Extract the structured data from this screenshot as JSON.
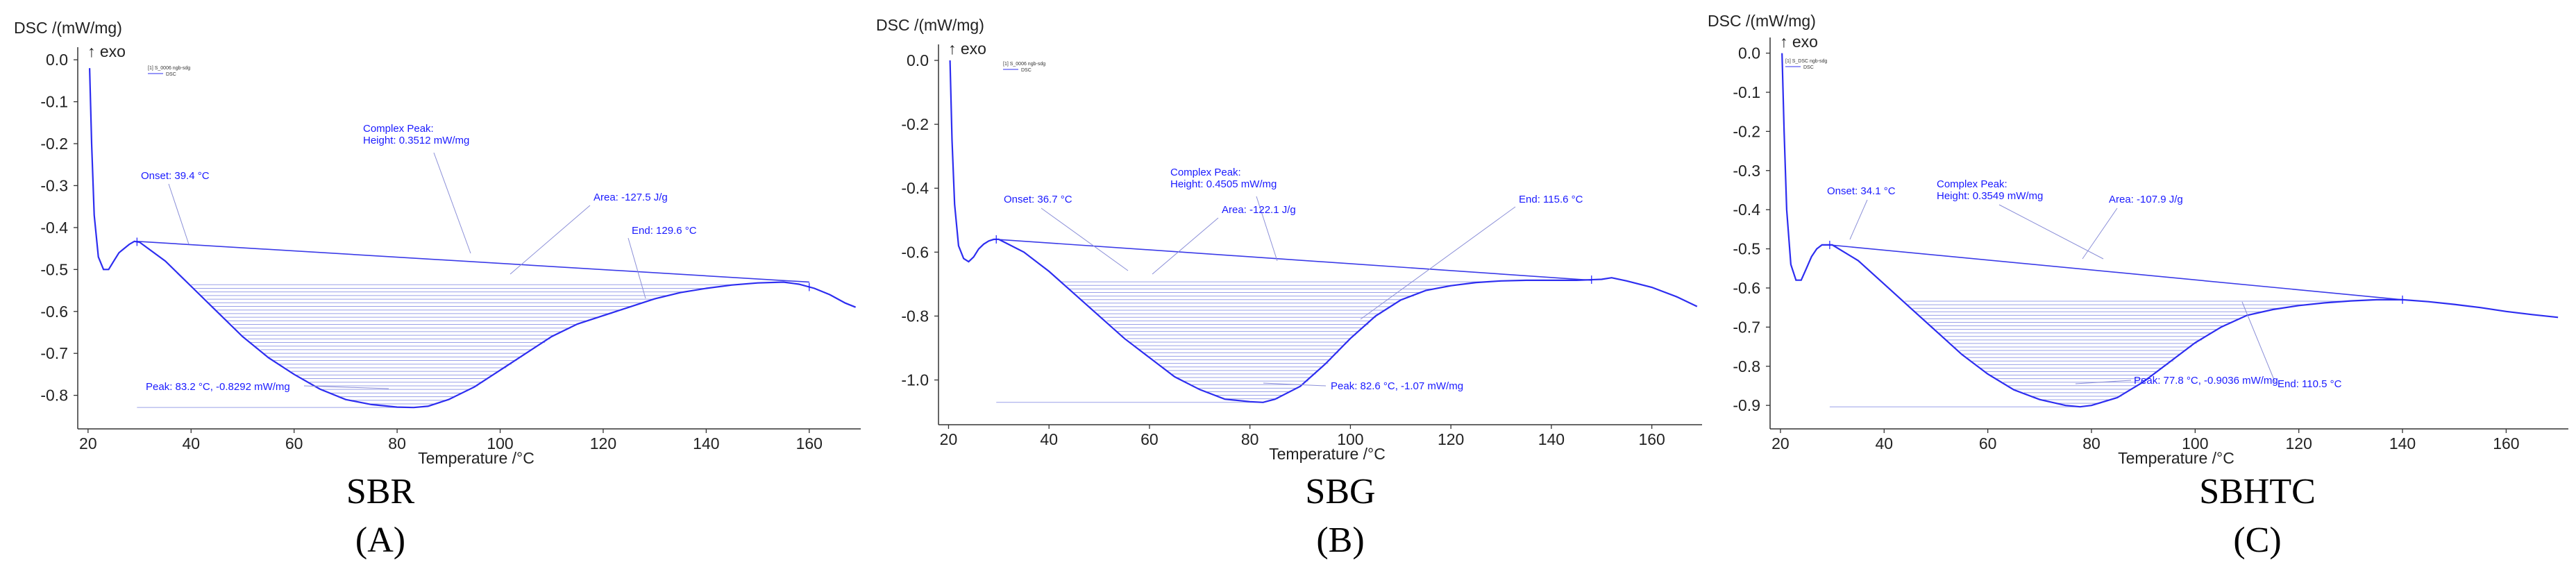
{
  "figure": {
    "captions": [
      {
        "name": "SBR",
        "letter": "(A)"
      },
      {
        "name": "SBG",
        "letter": "(B)"
      },
      {
        "name": "SBHTC",
        "letter": "(C)"
      }
    ]
  },
  "chart_data": [
    {
      "type": "line",
      "panel": "A",
      "title": "",
      "xlabel": "Temperature /°C",
      "ylabel": "DSC /(mW/mg)",
      "exo_label": "↑ exo",
      "legend": [
        "[1] S_0006 ngb-sdg",
        "DSC"
      ],
      "xlim": [
        18,
        170
      ],
      "ylim": [
        -0.88,
        0.03
      ],
      "xticks": [
        20,
        40,
        60,
        80,
        100,
        120,
        140,
        160
      ],
      "yticks": [
        0.0,
        -0.1,
        -0.2,
        -0.3,
        -0.4,
        -0.5,
        -0.6,
        -0.7,
        -0.8
      ],
      "ytick_labels": [
        "0.0",
        "-0.1",
        "-0.2",
        "-0.3",
        "-0.4",
        "-0.5",
        "-0.6",
        "-0.7",
        "-0.8"
      ],
      "series": [
        {
          "name": "DSC",
          "color": "#2d2df0",
          "x": [
            20.3,
            20.7,
            21.2,
            22,
            23,
            24,
            25,
            26,
            27,
            28,
            29,
            30,
            35,
            40,
            45,
            50,
            55,
            60,
            65,
            70,
            75,
            80,
            83.2,
            86,
            90,
            95,
            100,
            105,
            110,
            115,
            120,
            125,
            130,
            135,
            140,
            145,
            150,
            155,
            158,
            161,
            164,
            167,
            169
          ],
          "y": [
            -0.02,
            -0.2,
            -0.37,
            -0.47,
            -0.5,
            -0.5,
            -0.48,
            -0.46,
            -0.45,
            -0.44,
            -0.433,
            -0.435,
            -0.48,
            -0.54,
            -0.6,
            -0.66,
            -0.71,
            -0.75,
            -0.785,
            -0.81,
            -0.822,
            -0.828,
            -0.829,
            -0.826,
            -0.81,
            -0.78,
            -0.74,
            -0.7,
            -0.66,
            -0.63,
            -0.61,
            -0.59,
            -0.57,
            -0.555,
            -0.545,
            -0.537,
            -0.532,
            -0.53,
            -0.535,
            -0.545,
            -0.56,
            -0.58,
            -0.59
          ]
        }
      ],
      "baseline": {
        "x": [
          29.5,
          160
        ],
        "y": [
          -0.433,
          -0.53
        ]
      },
      "annotations": {
        "peak_label": "Complex Peak:",
        "height_label": "Height: 0.3512 mW/mg",
        "onset": "Onset: 39.4 °C",
        "area": "Area: -127.5 J/g",
        "end": "End: 129.6 °C",
        "peak": "Peak: 83.2 °C, -0.8292 mW/mg"
      }
    },
    {
      "type": "line",
      "panel": "B",
      "title": "",
      "xlabel": "Temperature /°C",
      "ylabel": "DSC /(mW/mg)",
      "exo_label": "↑ exo",
      "legend": [
        "[1] S_0006 ngb-sdg",
        "DSC"
      ],
      "xlim": [
        18,
        170
      ],
      "ylim": [
        -1.14,
        0.05
      ],
      "xticks": [
        20,
        40,
        60,
        80,
        100,
        120,
        140,
        160
      ],
      "yticks": [
        0.0,
        -0.2,
        -0.4,
        -0.6,
        -0.8,
        -1.0
      ],
      "ytick_labels": [
        "0.0",
        "-0.2",
        "-0.4",
        "-0.6",
        "-0.8",
        "-1.0"
      ],
      "series": [
        {
          "name": "DSC",
          "color": "#2d2df0",
          "x": [
            20.3,
            20.7,
            21.2,
            22,
            23,
            24,
            25,
            26,
            27,
            28,
            29,
            30,
            35,
            40,
            45,
            50,
            55,
            60,
            65,
            70,
            75,
            80,
            82.6,
            85,
            90,
            95,
            100,
            105,
            110,
            115,
            120,
            125,
            130,
            135,
            140,
            145,
            150,
            152,
            155,
            160,
            165,
            169
          ],
          "y": [
            0.0,
            -0.25,
            -0.45,
            -0.58,
            -0.62,
            -0.63,
            -0.615,
            -0.59,
            -0.575,
            -0.565,
            -0.56,
            -0.56,
            -0.6,
            -0.66,
            -0.73,
            -0.8,
            -0.87,
            -0.93,
            -0.99,
            -1.03,
            -1.06,
            -1.068,
            -1.07,
            -1.06,
            -1.02,
            -0.95,
            -0.87,
            -0.8,
            -0.75,
            -0.72,
            -0.705,
            -0.695,
            -0.69,
            -0.688,
            -0.688,
            -0.688,
            -0.685,
            -0.68,
            -0.69,
            -0.71,
            -0.74,
            -0.77
          ]
        }
      ],
      "baseline": {
        "x": [
          29.5,
          148
        ],
        "y": [
          -0.56,
          -0.688
        ]
      },
      "annotations": {
        "peak_label": "Complex Peak:",
        "height_label": "Height: 0.4505 mW/mg",
        "onset": "Onset: 36.7 °C",
        "area": "Area: -122.1 J/g",
        "end": "End: 115.6 °C",
        "peak": "Peak: 82.6 °C, -1.07 mW/mg"
      }
    },
    {
      "type": "line",
      "panel": "C",
      "title": "",
      "xlabel": "Temperature /°C",
      "ylabel": "DSC /(mW/mg)",
      "exo_label": "↑ exo",
      "legend": [
        "[1] S_DSC ngb-sdg",
        "DSC"
      ],
      "xlim": [
        18,
        172
      ],
      "ylim": [
        -0.96,
        0.04
      ],
      "xticks": [
        20,
        40,
        60,
        80,
        100,
        120,
        140,
        160
      ],
      "yticks": [
        0.0,
        -0.1,
        -0.2,
        -0.3,
        -0.4,
        -0.5,
        -0.6,
        -0.7,
        -0.8,
        -0.9
      ],
      "ytick_labels": [
        "0.0",
        "-0.1",
        "-0.2",
        "-0.3",
        "-0.4",
        "-0.5",
        "-0.6",
        "-0.7",
        "-0.8",
        "-0.9"
      ],
      "series": [
        {
          "name": "DSC",
          "color": "#2d2df0",
          "x": [
            20.3,
            20.7,
            21.2,
            22,
            23,
            24,
            25,
            26,
            27,
            28,
            29,
            30,
            35,
            40,
            45,
            50,
            55,
            60,
            65,
            70,
            75,
            77.8,
            80,
            85,
            90,
            95,
            100,
            105,
            110,
            115,
            120,
            125,
            130,
            135,
            140,
            145,
            150,
            155,
            160,
            165,
            170
          ],
          "y": [
            0.0,
            -0.2,
            -0.4,
            -0.54,
            -0.58,
            -0.58,
            -0.55,
            -0.52,
            -0.5,
            -0.49,
            -0.49,
            -0.49,
            -0.53,
            -0.59,
            -0.65,
            -0.71,
            -0.77,
            -0.82,
            -0.86,
            -0.885,
            -0.9,
            -0.9036,
            -0.9,
            -0.88,
            -0.84,
            -0.79,
            -0.74,
            -0.7,
            -0.67,
            -0.655,
            -0.645,
            -0.638,
            -0.633,
            -0.63,
            -0.63,
            -0.635,
            -0.642,
            -0.65,
            -0.66,
            -0.668,
            -0.675
          ]
        }
      ],
      "baseline": {
        "x": [
          29.5,
          140
        ],
        "y": [
          -0.49,
          -0.63
        ]
      },
      "annotations": {
        "peak_label": "Complex Peak:",
        "height_label": "Height: 0.3549 mW/mg",
        "onset": "Onset: 34.1 °C",
        "area": "Area: -107.9 J/g",
        "end": "End: 110.5 °C",
        "peak": "Peak: 77.8 °C, -0.9036 mW/mg"
      }
    }
  ]
}
